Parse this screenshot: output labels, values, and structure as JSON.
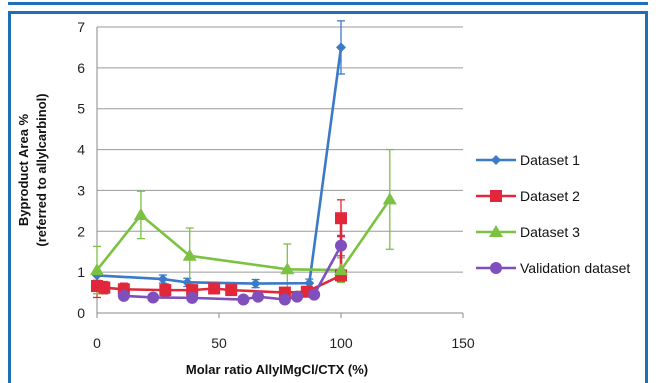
{
  "chart_data": {
    "type": "line",
    "xlabel": "Molar ratio AllylMgCl/CTX (%)",
    "ylabel_line1": "Byproduct Area %",
    "ylabel_line2": "(referred to allylcarbinol)",
    "xlim": [
      0,
      150
    ],
    "ylim": [
      0,
      7
    ],
    "x_ticks": [
      "0",
      "50",
      "100",
      "150"
    ],
    "y_ticks": [
      "0",
      "1",
      "2",
      "3",
      "4",
      "5",
      "6",
      "7"
    ],
    "grid": "horizontal",
    "legend_position": "right",
    "series": [
      {
        "name": "Dataset 1",
        "color": "#3a7ac8",
        "marker": "diamond",
        "x": [
          0,
          27,
          37,
          65,
          87,
          100
        ],
        "y": [
          0.92,
          0.83,
          0.75,
          0.72,
          0.73,
          6.5
        ],
        "err": [
          0.12,
          0.1,
          0.1,
          0.1,
          0.1,
          0.65
        ]
      },
      {
        "name": "Dataset 2",
        "color": "#e0283a",
        "marker": "square",
        "x": [
          0,
          3,
          11,
          28,
          39,
          48,
          55,
          77,
          86,
          100,
          100
        ],
        "y": [
          0.66,
          0.62,
          0.58,
          0.56,
          0.56,
          0.6,
          0.56,
          0.5,
          0.52,
          0.92,
          2.32
        ],
        "err": [
          0.28,
          0.15,
          0.15,
          0.15,
          0.12,
          0.1,
          0.1,
          0.12,
          0.12,
          0.15,
          0.45
        ]
      },
      {
        "name": "Dataset 3",
        "color": "#7cc242",
        "marker": "triangle",
        "x": [
          0,
          18,
          38,
          78,
          100,
          120
        ],
        "y": [
          1.05,
          2.4,
          1.4,
          1.07,
          1.05,
          2.78
        ],
        "err": [
          0.58,
          0.58,
          0.68,
          0.62,
          0.3,
          1.22
        ]
      },
      {
        "name": "Validation dataset",
        "color": "#7f4fbd",
        "marker": "circle",
        "x": [
          11,
          23,
          39,
          60,
          66,
          77,
          82,
          89,
          100
        ],
        "y": [
          0.42,
          0.38,
          0.37,
          0.33,
          0.4,
          0.33,
          0.4,
          0.45,
          1.65
        ],
        "err": [
          0.08,
          0.08,
          0.08,
          0.08,
          0.08,
          0.08,
          0.08,
          0.08,
          0.25
        ]
      }
    ]
  }
}
